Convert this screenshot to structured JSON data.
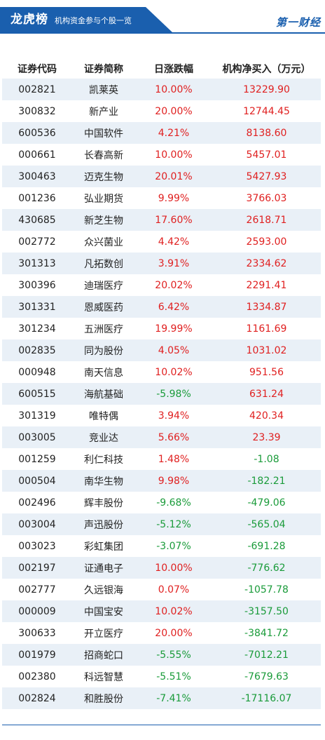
{
  "header": {
    "title": "龙虎榜",
    "subtitle": "机构资金参与个股一览",
    "logo": "第一财经"
  },
  "colors": {
    "accent": "#1a5fae",
    "up": "#e02020",
    "down": "#1a9b3a",
    "stripe": "#e9f0f7"
  },
  "table": {
    "columns": [
      "证券代码",
      "证券简称",
      "日涨跌幅",
      "机构净买入（万元）"
    ],
    "rows": [
      {
        "code": "002821",
        "name": "凯莱英",
        "change": "10.00%",
        "net": "13229.90"
      },
      {
        "code": "300832",
        "name": "新产业",
        "change": "20.00%",
        "net": "12744.45"
      },
      {
        "code": "600536",
        "name": "中国软件",
        "change": "4.21%",
        "net": "8138.60"
      },
      {
        "code": "000661",
        "name": "长春高新",
        "change": "10.00%",
        "net": "5457.01"
      },
      {
        "code": "300463",
        "name": "迈克生物",
        "change": "20.01%",
        "net": "5427.93"
      },
      {
        "code": "001236",
        "name": "弘业期货",
        "change": "9.99%",
        "net": "3766.03"
      },
      {
        "code": "430685",
        "name": "新芝生物",
        "change": "17.60%",
        "net": "2618.71"
      },
      {
        "code": "002772",
        "name": "众兴菌业",
        "change": "4.42%",
        "net": "2593.00"
      },
      {
        "code": "301313",
        "name": "凡拓数创",
        "change": "3.91%",
        "net": "2334.62"
      },
      {
        "code": "300396",
        "name": "迪瑞医疗",
        "change": "20.02%",
        "net": "2291.41"
      },
      {
        "code": "301331",
        "name": "恩威医药",
        "change": "6.42%",
        "net": "1334.87"
      },
      {
        "code": "301234",
        "name": "五洲医疗",
        "change": "19.99%",
        "net": "1161.69"
      },
      {
        "code": "002835",
        "name": "同为股份",
        "change": "4.05%",
        "net": "1031.02"
      },
      {
        "code": "000948",
        "name": "南天信息",
        "change": "10.02%",
        "net": "951.56"
      },
      {
        "code": "600515",
        "name": "海航基础",
        "change": "-5.98%",
        "net": "631.24"
      },
      {
        "code": "301319",
        "name": "唯特偶",
        "change": "3.94%",
        "net": "420.34"
      },
      {
        "code": "003005",
        "name": "竞业达",
        "change": "5.66%",
        "net": "23.39"
      },
      {
        "code": "001259",
        "name": "利仁科技",
        "change": "1.48%",
        "net": "-1.08"
      },
      {
        "code": "000504",
        "name": "南华生物",
        "change": "9.98%",
        "net": "-182.21"
      },
      {
        "code": "002496",
        "name": "辉丰股份",
        "change": "-9.68%",
        "net": "-479.06"
      },
      {
        "code": "003004",
        "name": "声迅股份",
        "change": "-5.12%",
        "net": "-565.04"
      },
      {
        "code": "003023",
        "name": "彩虹集团",
        "change": "-3.07%",
        "net": "-691.28"
      },
      {
        "code": "002197",
        "name": "证通电子",
        "change": "10.00%",
        "net": "-776.62"
      },
      {
        "code": "002777",
        "name": "久远银海",
        "change": "0.07%",
        "net": "-1057.78"
      },
      {
        "code": "000009",
        "name": "中国宝安",
        "change": "10.02%",
        "net": "-3157.50"
      },
      {
        "code": "300633",
        "name": "开立医疗",
        "change": "20.00%",
        "net": "-3841.72"
      },
      {
        "code": "001979",
        "name": "招商蛇口",
        "change": "-5.55%",
        "net": "-7012.21"
      },
      {
        "code": "002380",
        "name": "科远智慧",
        "change": "-5.51%",
        "net": "-7679.63"
      },
      {
        "code": "002824",
        "name": "和胜股份",
        "change": "-7.41%",
        "net": "-17116.07"
      }
    ]
  }
}
